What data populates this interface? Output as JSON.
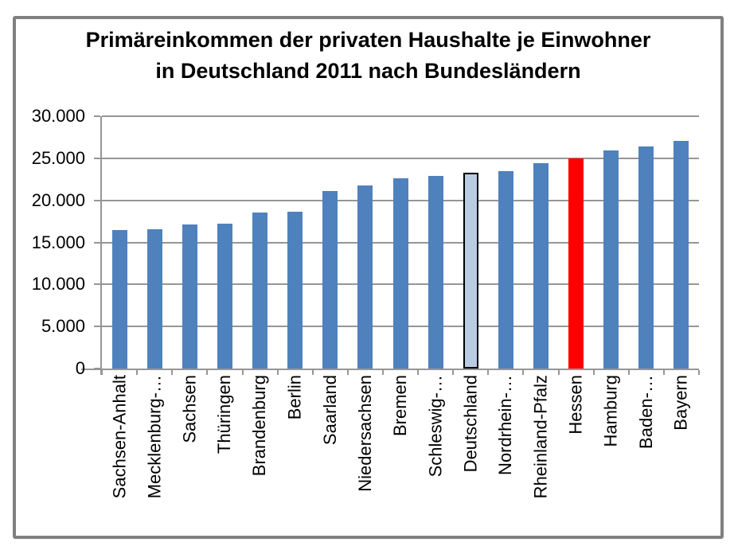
{
  "chart": {
    "title_lines": [
      "Primäreinkommen der privaten Haushalte je Einwohner",
      "in Deutschland 2011 nach Bundesländern"
    ]
  },
  "chart_data": {
    "type": "bar",
    "title": "Primäreinkommen der privaten Haushalte je Einwohner in Deutschland 2011 nach Bundesländern",
    "xlabel": "",
    "ylabel": "",
    "categories": [
      "Sachsen-Anhalt",
      "Mecklenburg-…",
      "Sachsen",
      "Thüringen",
      "Brandenburg",
      "Berlin",
      "Saarland",
      "Niedersachsen",
      "Bremen",
      "Schleswig-…",
      "Deutschland",
      "Nordrhein-…",
      "Rheinland-Pfalz",
      "Hessen",
      "Hamburg",
      "Baden-…",
      "Bayern"
    ],
    "values": [
      16450,
      16550,
      17100,
      17250,
      18550,
      18650,
      21100,
      21750,
      22600,
      22900,
      23300,
      23500,
      24450,
      24950,
      25950,
      26450,
      27100
    ],
    "ylim": [
      0,
      30000
    ],
    "y_tick_interval": 5000,
    "y_tick_labels": [
      "0",
      "5.000",
      "10.000",
      "15.000",
      "20.000",
      "25.000",
      "30.000"
    ],
    "grid": true,
    "legend": false,
    "x_labels_rotated_degrees": 90,
    "colors": {
      "bar": "#4F81BD",
      "gridline": "#969696",
      "axis": "#969696",
      "frame": "#808080",
      "text": "#000000"
    },
    "highlights": [
      {
        "category": "Deutschland",
        "fill": "#B8CCE4",
        "border": "#000000"
      },
      {
        "category": "Hessen",
        "fill": "#FF0000"
      }
    ]
  }
}
